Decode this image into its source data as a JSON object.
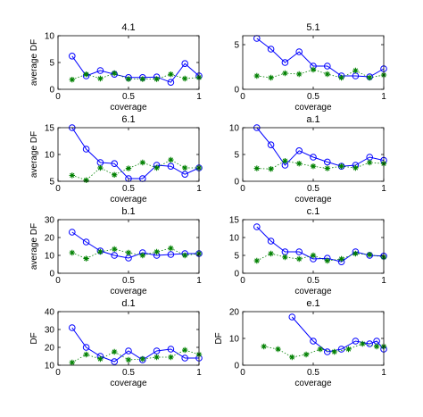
{
  "chart_data": [
    {
      "type": "line",
      "title": "4.1",
      "xlabel": "coverage",
      "ylabel": "average DF",
      "xlim": [
        0,
        1
      ],
      "ylim": [
        0,
        10
      ],
      "xticks": [
        "0",
        "0.5",
        "1"
      ],
      "yticks": [
        "0",
        "5",
        "10"
      ],
      "series": [
        {
          "marker": "circle",
          "line": "solid",
          "color": "#0000ff",
          "points": [
            [
              0.1,
              6.2
            ],
            [
              0.2,
              2.5
            ],
            [
              0.3,
              3.5
            ],
            [
              0.4,
              2.8
            ],
            [
              0.5,
              2.2
            ],
            [
              0.6,
              2.2
            ],
            [
              0.7,
              2.3
            ],
            [
              0.8,
              1.3
            ],
            [
              0.9,
              4.8
            ],
            [
              1.0,
              2.5
            ]
          ]
        },
        {
          "marker": "star",
          "line": "dotted",
          "color": "#008000",
          "points": [
            [
              0.1,
              1.8
            ],
            [
              0.2,
              2.8
            ],
            [
              0.3,
              2.0
            ],
            [
              0.4,
              3.0
            ],
            [
              0.5,
              1.9
            ],
            [
              0.6,
              1.9
            ],
            [
              0.7,
              1.9
            ],
            [
              0.8,
              2.8
            ],
            [
              0.9,
              2.0
            ],
            [
              1.0,
              2.2
            ]
          ]
        }
      ]
    },
    {
      "type": "line",
      "title": "5.1",
      "xlabel": "coverage",
      "ylabel": "",
      "xlim": [
        0,
        1
      ],
      "ylim": [
        0,
        6
      ],
      "xticks": [
        "0",
        "0.5",
        "1"
      ],
      "yticks": [
        "0",
        "5"
      ],
      "series": [
        {
          "marker": "circle",
          "line": "solid",
          "color": "#0000ff",
          "points": [
            [
              0.1,
              5.7
            ],
            [
              0.2,
              4.5
            ],
            [
              0.3,
              3.0
            ],
            [
              0.4,
              4.2
            ],
            [
              0.5,
              2.6
            ],
            [
              0.6,
              2.6
            ],
            [
              0.7,
              1.5
            ],
            [
              0.8,
              1.5
            ],
            [
              0.9,
              1.4
            ],
            [
              1.0,
              2.3
            ]
          ]
        },
        {
          "marker": "star",
          "line": "dotted",
          "color": "#008000",
          "points": [
            [
              0.1,
              1.5
            ],
            [
              0.2,
              1.3
            ],
            [
              0.3,
              1.8
            ],
            [
              0.4,
              1.7
            ],
            [
              0.5,
              2.2
            ],
            [
              0.6,
              1.7
            ],
            [
              0.7,
              1.3
            ],
            [
              0.8,
              2.1
            ],
            [
              0.9,
              1.3
            ],
            [
              1.0,
              1.6
            ]
          ]
        }
      ]
    },
    {
      "type": "line",
      "title": "6.1",
      "xlabel": "coverage",
      "ylabel": "average DF",
      "xlim": [
        0,
        1
      ],
      "ylim": [
        5,
        15
      ],
      "xticks": [
        "0",
        "0.5",
        "1"
      ],
      "yticks": [
        "5",
        "10",
        "15"
      ],
      "series": [
        {
          "marker": "circle",
          "line": "solid",
          "color": "#0000ff",
          "points": [
            [
              0.1,
              15
            ],
            [
              0.2,
              11
            ],
            [
              0.3,
              8.5
            ],
            [
              0.4,
              8.3
            ],
            [
              0.5,
              5.5
            ],
            [
              0.6,
              5.5
            ],
            [
              0.7,
              8
            ],
            [
              0.8,
              7.8
            ],
            [
              0.9,
              6.3
            ],
            [
              1.0,
              7.5
            ]
          ]
        },
        {
          "marker": "star",
          "line": "dotted",
          "color": "#008000",
          "points": [
            [
              0.1,
              6.1
            ],
            [
              0.2,
              5.2
            ],
            [
              0.3,
              7.5
            ],
            [
              0.4,
              6.2
            ],
            [
              0.5,
              7.4
            ],
            [
              0.6,
              8.5
            ],
            [
              0.7,
              7.5
            ],
            [
              0.8,
              9
            ],
            [
              0.9,
              7.5
            ],
            [
              1.0,
              7.5
            ]
          ]
        }
      ]
    },
    {
      "type": "line",
      "title": "a.1",
      "xlabel": "coverage",
      "ylabel": "",
      "xlim": [
        0,
        1
      ],
      "ylim": [
        0,
        10
      ],
      "xticks": [
        "0",
        "0.5",
        "1"
      ],
      "yticks": [
        "0",
        "5",
        "10"
      ],
      "series": [
        {
          "marker": "circle",
          "line": "solid",
          "color": "#0000ff",
          "points": [
            [
              0.1,
              10
            ],
            [
              0.2,
              6.8
            ],
            [
              0.3,
              3.0
            ],
            [
              0.4,
              5.7
            ],
            [
              0.5,
              4.5
            ],
            [
              0.6,
              3.6
            ],
            [
              0.7,
              2.8
            ],
            [
              0.8,
              3.0
            ],
            [
              0.9,
              4.5
            ],
            [
              1.0,
              3.9
            ]
          ]
        },
        {
          "marker": "star",
          "line": "dotted",
          "color": "#008000",
          "points": [
            [
              0.1,
              2.4
            ],
            [
              0.2,
              2.3
            ],
            [
              0.3,
              3.8
            ],
            [
              0.4,
              3.3
            ],
            [
              0.5,
              2.8
            ],
            [
              0.6,
              2.4
            ],
            [
              0.7,
              2.8
            ],
            [
              0.8,
              2.5
            ],
            [
              0.9,
              3.5
            ],
            [
              1.0,
              3.3
            ]
          ]
        }
      ]
    },
    {
      "type": "line",
      "title": "b.1",
      "xlabel": "coverage",
      "ylabel": "average DF",
      "xlim": [
        0,
        1
      ],
      "ylim": [
        0,
        30
      ],
      "xticks": [
        "0",
        "0.5",
        "1"
      ],
      "yticks": [
        "0",
        "10",
        "20",
        "30"
      ],
      "series": [
        {
          "marker": "circle",
          "line": "solid",
          "color": "#0000ff",
          "points": [
            [
              0.1,
              23
            ],
            [
              0.2,
              17.5
            ],
            [
              0.3,
              12.5
            ],
            [
              0.4,
              10
            ],
            [
              0.5,
              8.5
            ],
            [
              0.6,
              11.5
            ],
            [
              0.7,
              10
            ],
            [
              0.8,
              10.5
            ],
            [
              0.9,
              11
            ],
            [
              1.0,
              11
            ]
          ]
        },
        {
          "marker": "star",
          "line": "dotted",
          "color": "#008000",
          "points": [
            [
              0.1,
              11.5
            ],
            [
              0.2,
              8.2
            ],
            [
              0.3,
              12
            ],
            [
              0.4,
              13.5
            ],
            [
              0.5,
              11.5
            ],
            [
              0.6,
              10
            ],
            [
              0.7,
              12
            ],
            [
              0.8,
              14
            ],
            [
              0.9,
              10
            ],
            [
              1.0,
              11
            ]
          ]
        }
      ]
    },
    {
      "type": "line",
      "title": "c.1",
      "xlabel": "coverage",
      "ylabel": "",
      "xlim": [
        0,
        1
      ],
      "ylim": [
        0,
        15
      ],
      "xticks": [
        "0",
        "0.5",
        "1"
      ],
      "yticks": [
        "0",
        "5",
        "10",
        "15"
      ],
      "series": [
        {
          "marker": "circle",
          "line": "solid",
          "color": "#0000ff",
          "points": [
            [
              0.1,
              13
            ],
            [
              0.2,
              9
            ],
            [
              0.3,
              6
            ],
            [
              0.4,
              6
            ],
            [
              0.5,
              4
            ],
            [
              0.6,
              4.2
            ],
            [
              0.7,
              3.2
            ],
            [
              0.8,
              6
            ],
            [
              0.9,
              5
            ],
            [
              1.0,
              4.8
            ]
          ]
        },
        {
          "marker": "star",
          "line": "dotted",
          "color": "#008000",
          "points": [
            [
              0.1,
              3.5
            ],
            [
              0.2,
              5.5
            ],
            [
              0.3,
              4.5
            ],
            [
              0.4,
              4
            ],
            [
              0.5,
              5
            ],
            [
              0.6,
              3.5
            ],
            [
              0.7,
              4
            ],
            [
              0.8,
              5.5
            ],
            [
              0.9,
              5.2
            ],
            [
              1.0,
              4.5
            ]
          ]
        }
      ]
    },
    {
      "type": "line",
      "title": "d.1",
      "xlabel": "coverage",
      "ylabel": "DF",
      "xlim": [
        0,
        1
      ],
      "ylim": [
        10,
        40
      ],
      "xticks": [
        "0",
        "0.5",
        "1"
      ],
      "yticks": [
        "10",
        "20",
        "30",
        "40"
      ],
      "series": [
        {
          "marker": "circle",
          "line": "solid",
          "color": "#0000ff",
          "points": [
            [
              0.1,
              31
            ],
            [
              0.2,
              20
            ],
            [
              0.3,
              15
            ],
            [
              0.4,
              12
            ],
            [
              0.5,
              18
            ],
            [
              0.6,
              13
            ],
            [
              0.7,
              18
            ],
            [
              0.8,
              19
            ],
            [
              0.9,
              14
            ],
            [
              1.0,
              14
            ]
          ]
        },
        {
          "marker": "star",
          "line": "dotted",
          "color": "#008000",
          "points": [
            [
              0.1,
              11.5
            ],
            [
              0.2,
              16
            ],
            [
              0.3,
              13.5
            ],
            [
              0.4,
              17.5
            ],
            [
              0.5,
              13
            ],
            [
              0.6,
              13.5
            ],
            [
              0.7,
              14.5
            ],
            [
              0.8,
              14.5
            ],
            [
              0.9,
              18.5
            ],
            [
              1.0,
              16
            ]
          ]
        }
      ]
    },
    {
      "type": "line",
      "title": "e.1",
      "xlabel": "coverage",
      "ylabel": "DF",
      "xlim": [
        0,
        1
      ],
      "ylim": [
        0,
        20
      ],
      "xticks": [
        "0",
        "0.5",
        "1"
      ],
      "yticks": [
        "0",
        "10",
        "20"
      ],
      "series": [
        {
          "marker": "circle",
          "line": "solid",
          "color": "#0000ff",
          "points": [
            [
              0.35,
              18
            ],
            [
              0.5,
              9
            ],
            [
              0.6,
              5
            ],
            [
              0.7,
              6
            ],
            [
              0.8,
              9
            ],
            [
              0.9,
              8
            ],
            [
              0.95,
              9
            ],
            [
              1.0,
              6
            ]
          ]
        },
        {
          "marker": "star",
          "line": "dotted",
          "color": "#008000",
          "points": [
            [
              0.15,
              7
            ],
            [
              0.25,
              6
            ],
            [
              0.35,
              3
            ],
            [
              0.45,
              4
            ],
            [
              0.55,
              6
            ],
            [
              0.65,
              5
            ],
            [
              0.75,
              6
            ],
            [
              0.85,
              8
            ],
            [
              0.95,
              7
            ],
            [
              1.0,
              7
            ]
          ]
        }
      ]
    }
  ]
}
